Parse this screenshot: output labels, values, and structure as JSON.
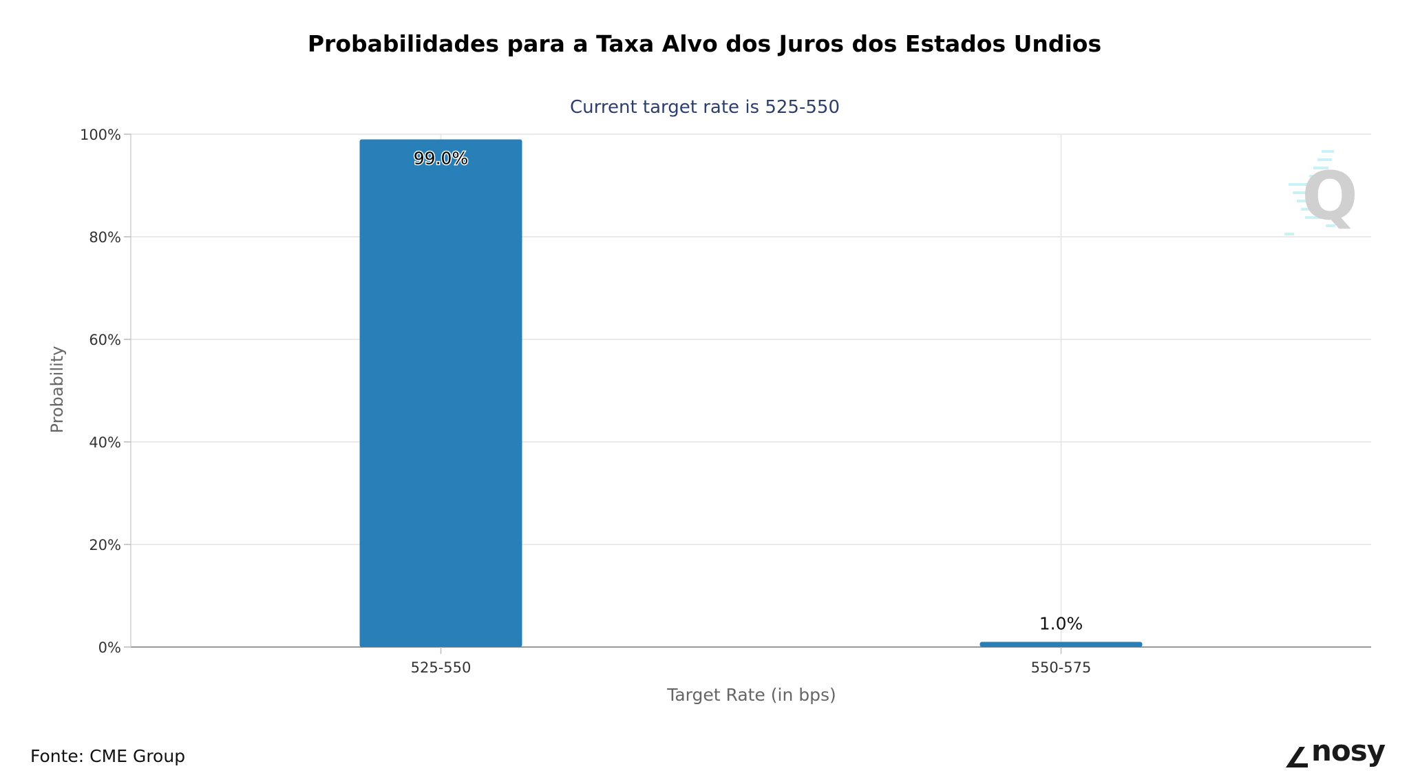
{
  "title": "Probabilidades para a Taxa Alvo dos Juros dos Estados Undios",
  "source": "Fonte: CME Group",
  "brand": "nosy",
  "chart_data": {
    "type": "bar",
    "subtitle": "Current target rate is 525-550",
    "xlabel": "Target Rate (in bps)",
    "ylabel": "Probability",
    "categories": [
      "525-550",
      "550-575"
    ],
    "values": [
      99.0,
      1.0
    ],
    "data_labels": [
      "99.0%",
      "1.0%"
    ],
    "ylim": [
      0,
      100
    ],
    "yticks": [
      "0%",
      "20%",
      "40%",
      "60%",
      "80%",
      "100%"
    ],
    "grid": true,
    "bar_color": "#2980b9",
    "subtitle_color": "#2c3e6b"
  }
}
